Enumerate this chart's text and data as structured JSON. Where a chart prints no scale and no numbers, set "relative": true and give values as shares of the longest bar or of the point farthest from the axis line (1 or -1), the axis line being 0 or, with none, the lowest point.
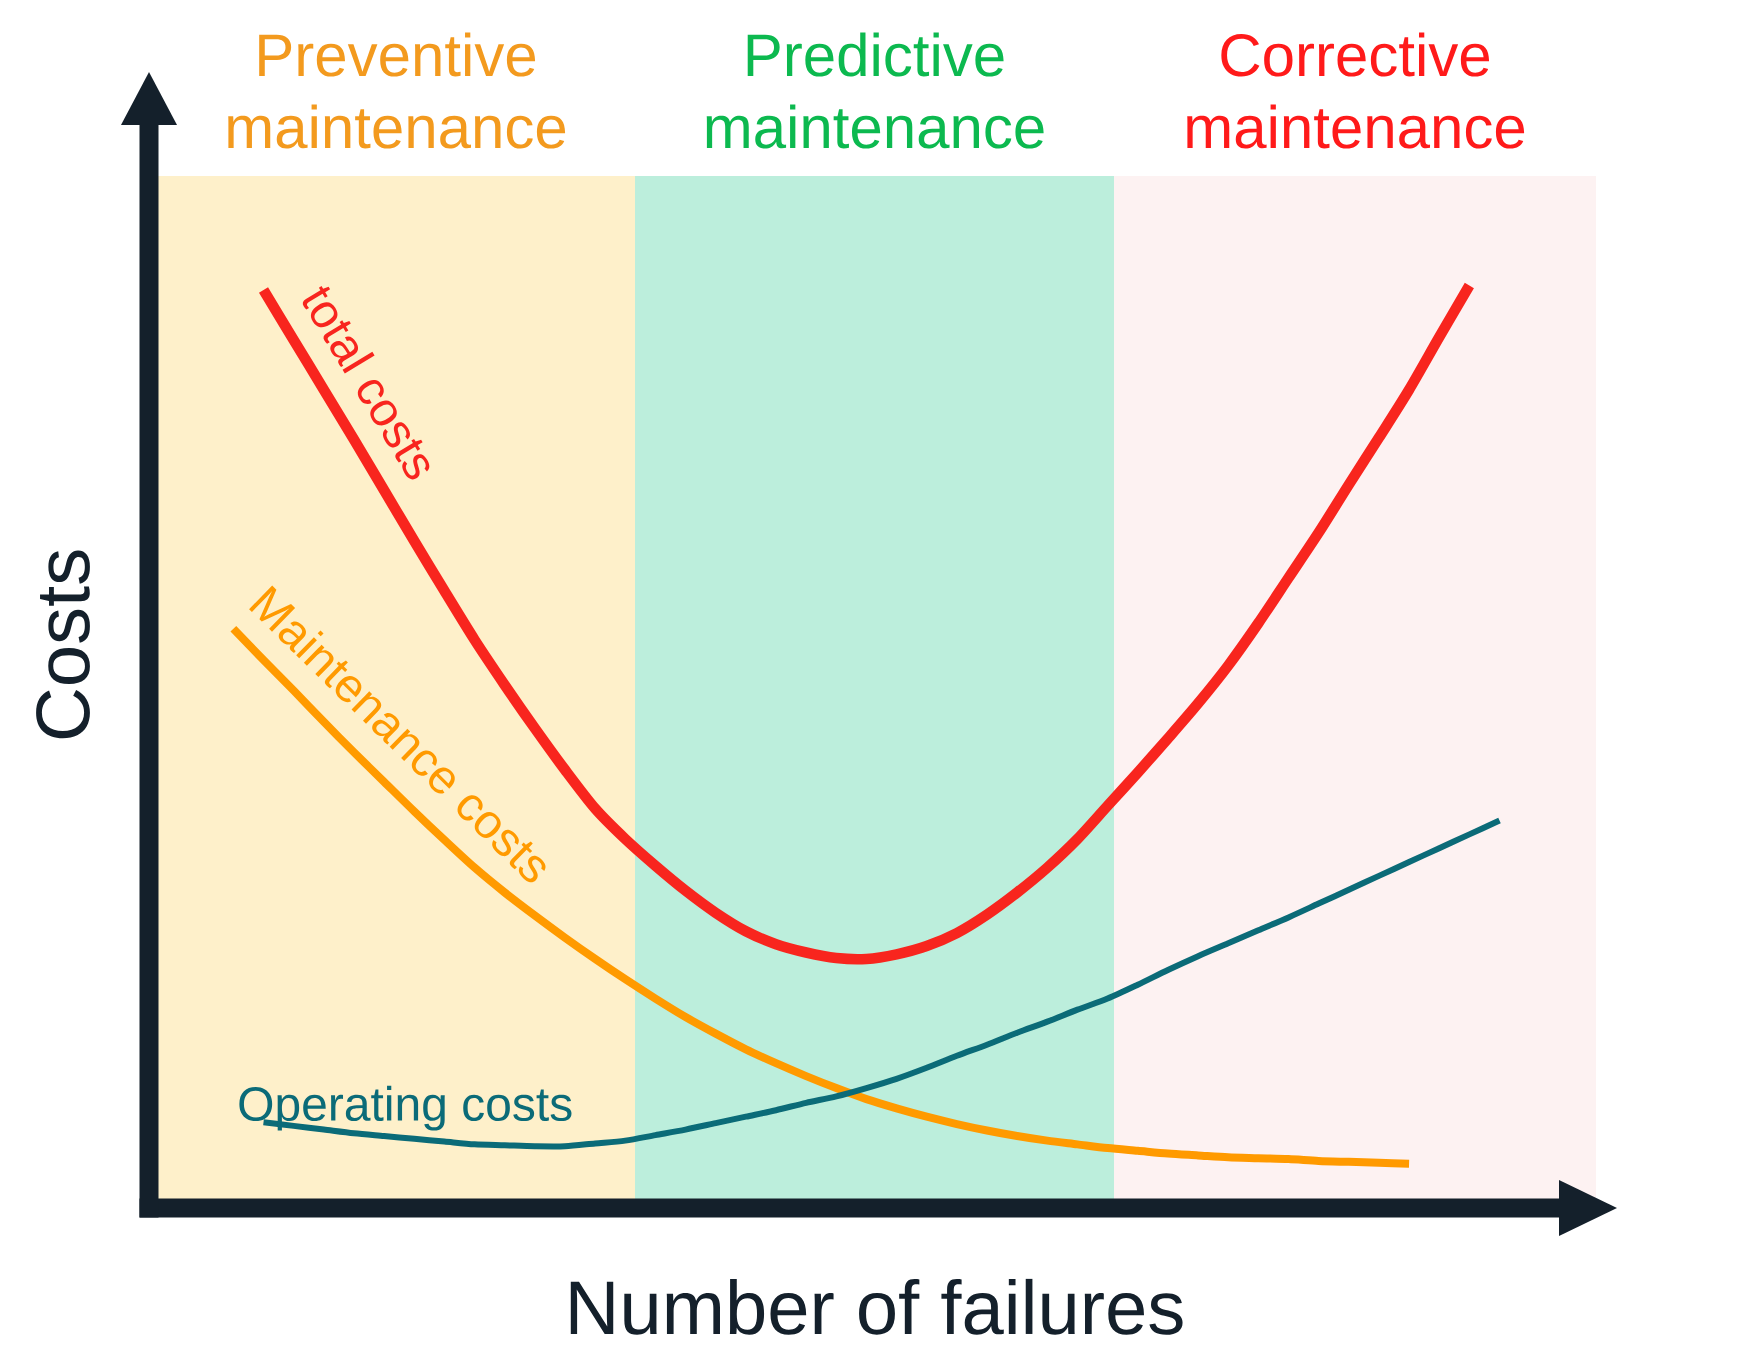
{
  "chart_data": {
    "type": "line",
    "relative": true,
    "xlabel": "Number of failures",
    "ylabel": "Costs",
    "categories": [
      null,
      null,
      null,
      null,
      null,
      null,
      null,
      null,
      null,
      null,
      null,
      null,
      null,
      null,
      null,
      null,
      null,
      null,
      null,
      null,
      null,
      null,
      null,
      null,
      null,
      null,
      null,
      null,
      null,
      null,
      null,
      null,
      null,
      null,
      null,
      null,
      null,
      null,
      null,
      null,
      null,
      null,
      null,
      null,
      null,
      null,
      null,
      null
    ],
    "series": [
      {
        "name": "total costs",
        "color": "#f8251e",
        "values": [
          null,
          null,
          null,
          0.995,
          0.941,
          0.887,
          0.833,
          0.778,
          0.723,
          0.669,
          0.616,
          0.567,
          0.52,
          0.475,
          0.433,
          0.4,
          0.371,
          0.344,
          0.32,
          0.3,
          0.286,
          0.277,
          0.271,
          0.27,
          0.275,
          0.284,
          0.298,
          0.318,
          0.342,
          0.369,
          0.4,
          0.436,
          0.472,
          0.509,
          0.547,
          0.588,
          0.634,
          0.683,
          0.732,
          0.784,
          0.835,
          0.887,
          0.944,
          1.0,
          null,
          null,
          null,
          null
        ]
      },
      {
        "name": "Maintenance costs",
        "color": "#ff9a00",
        "values": [
          null,
          null,
          0.628,
          0.594,
          0.561,
          0.527,
          0.494,
          0.462,
          0.43,
          0.399,
          0.369,
          0.342,
          0.317,
          0.293,
          0.27,
          0.248,
          0.227,
          0.207,
          0.189,
          0.172,
          0.157,
          0.143,
          0.13,
          0.118,
          0.108,
          0.099,
          0.091,
          0.084,
          0.078,
          0.073,
          0.069,
          0.065,
          0.062,
          0.059,
          0.057,
          0.055,
          0.054,
          0.053,
          0.051,
          0.05,
          0.049,
          0.048,
          null,
          null,
          null,
          null,
          null,
          null
        ]
      },
      {
        "name": "Operating costs",
        "color": "#0b6b78",
        "values": [
          null,
          null,
          null,
          0.093,
          0.089,
          0.085,
          0.081,
          0.078,
          0.075,
          0.072,
          0.069,
          0.068,
          0.067,
          0.067,
          0.07,
          0.073,
          0.079,
          0.085,
          0.092,
          0.099,
          0.106,
          0.114,
          0.121,
          0.13,
          0.14,
          0.152,
          0.165,
          0.177,
          0.19,
          0.202,
          0.215,
          0.227,
          0.242,
          0.258,
          0.273,
          0.287,
          0.301,
          0.315,
          0.33,
          0.345,
          0.36,
          0.375,
          0.39,
          0.405,
          0.42,
          null,
          null,
          null
        ]
      }
    ],
    "annotations": [
      "Preventive maintenance",
      "Predictive maintenance",
      "Corrective maintenance"
    ]
  }
}
